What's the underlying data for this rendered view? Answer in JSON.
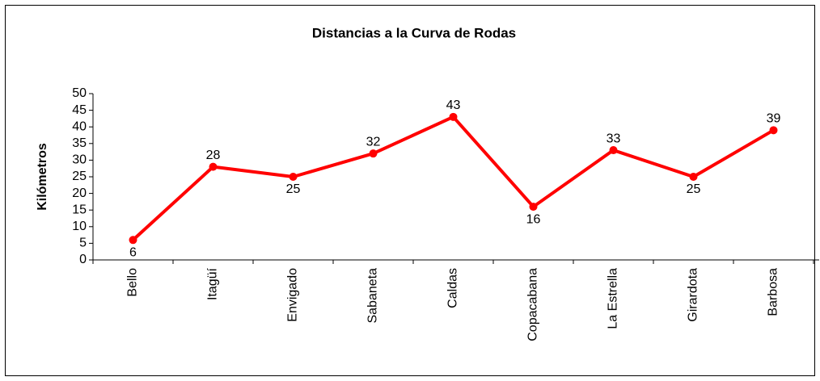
{
  "chart_data": {
    "type": "line",
    "title": "Distancias a la Curva de Rodas",
    "y_label": "Kilómetros",
    "categories": [
      "Bello",
      "Itagüí",
      "Envigado",
      "Sabaneta",
      "Caldas",
      "Copacabana",
      "La Estrella",
      "Girardota",
      "Barbosa"
    ],
    "values": [
      6,
      28,
      25,
      32,
      43,
      16,
      33,
      25,
      39
    ],
    "color": "#ff0000",
    "ylim": [
      0,
      50
    ],
    "yticks": [
      0,
      5,
      10,
      15,
      20,
      25,
      30,
      35,
      40,
      45,
      50
    ],
    "grid": false,
    "data_labels": true
  }
}
